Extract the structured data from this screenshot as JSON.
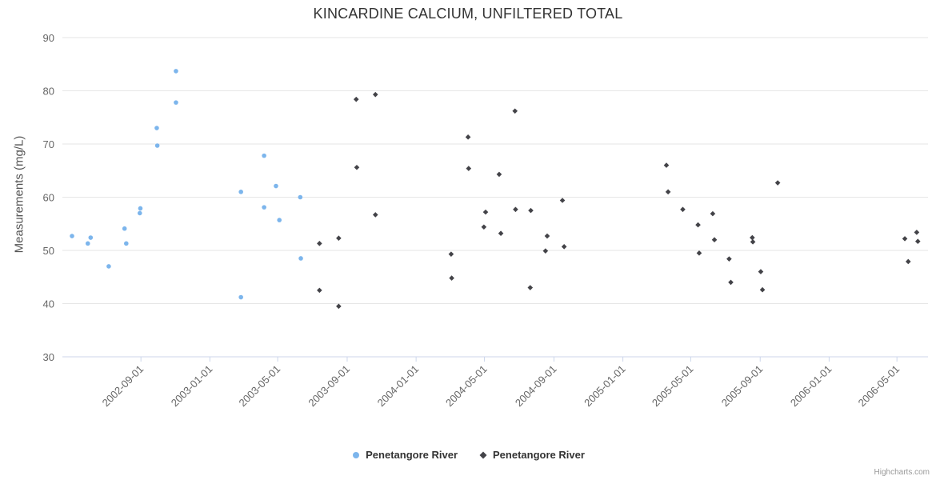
{
  "credits": "Highcharts.com",
  "chart_data": {
    "type": "scatter",
    "title": "KINCARDINE CALCIUM, UNFILTERED TOTAL",
    "xlabel": "",
    "ylabel": "Measurements (mg/L)",
    "ylim": [
      30,
      90
    ],
    "y_ticks": [
      30,
      40,
      50,
      60,
      70,
      80,
      90
    ],
    "x_ticks": [
      "2002-09-01",
      "2003-01-01",
      "2003-05-01",
      "2003-09-01",
      "2004-01-01",
      "2004-05-01",
      "2004-09-01",
      "2005-01-01",
      "2005-05-01",
      "2005-09-01",
      "2006-01-01",
      "2006-05-01"
    ],
    "x_range": [
      "2002-04-15",
      "2006-06-25"
    ],
    "grid": "horizontal-only",
    "legend_position": "bottom-center",
    "colors": {
      "series1": "#7cb5ec",
      "series2": "#434348",
      "gridline": "#e6e6e6",
      "axis_line": "#ccd6eb",
      "axis_label": "#666666",
      "title": "#333333"
    },
    "series": [
      {
        "name": "Penetangore River",
        "marker": "circle",
        "color": "#7cb5ec",
        "points": [
          [
            "2002-05-02",
            52.7
          ],
          [
            "2002-05-30",
            51.3
          ],
          [
            "2002-06-04",
            52.4
          ],
          [
            "2002-07-06",
            47.0
          ],
          [
            "2002-08-03",
            54.1
          ],
          [
            "2002-08-06",
            51.3
          ],
          [
            "2002-08-30",
            57.0
          ],
          [
            "2002-08-31",
            57.9
          ],
          [
            "2002-09-29",
            73.0
          ],
          [
            "2002-09-30",
            69.7
          ],
          [
            "2002-11-02",
            83.7
          ],
          [
            "2002-11-02",
            77.8
          ],
          [
            "2003-02-25",
            61.0
          ],
          [
            "2003-02-25",
            41.2
          ],
          [
            "2003-04-07",
            67.8
          ],
          [
            "2003-04-07",
            58.1
          ],
          [
            "2003-04-28",
            62.1
          ],
          [
            "2003-05-04",
            55.7
          ],
          [
            "2003-06-10",
            60.0
          ],
          [
            "2003-06-11",
            48.5
          ]
        ]
      },
      {
        "name": "Penetangore River",
        "marker": "diamond",
        "color": "#434348",
        "points": [
          [
            "2003-07-14",
            51.3
          ],
          [
            "2003-07-14",
            42.5
          ],
          [
            "2003-08-17",
            52.3
          ],
          [
            "2003-08-17",
            39.5
          ],
          [
            "2003-09-17",
            78.4
          ],
          [
            "2003-09-18",
            65.6
          ],
          [
            "2003-10-21",
            79.3
          ],
          [
            "2003-10-21",
            56.7
          ],
          [
            "2004-03-03",
            49.3
          ],
          [
            "2004-03-04",
            44.8
          ],
          [
            "2004-04-02",
            71.3
          ],
          [
            "2004-04-03",
            65.4
          ],
          [
            "2004-04-30",
            54.4
          ],
          [
            "2004-05-03",
            57.2
          ],
          [
            "2004-05-27",
            64.3
          ],
          [
            "2004-05-30",
            53.2
          ],
          [
            "2004-06-24",
            76.2
          ],
          [
            "2004-06-25",
            57.7
          ],
          [
            "2004-07-21",
            43.0
          ],
          [
            "2004-07-22",
            57.5
          ],
          [
            "2004-08-17",
            49.9
          ],
          [
            "2004-08-20",
            52.7
          ],
          [
            "2004-09-16",
            59.4
          ],
          [
            "2004-09-19",
            50.7
          ],
          [
            "2005-03-19",
            66.0
          ],
          [
            "2005-03-22",
            61.0
          ],
          [
            "2005-04-17",
            57.7
          ],
          [
            "2005-05-14",
            54.8
          ],
          [
            "2005-05-16",
            49.5
          ],
          [
            "2005-06-09",
            56.9
          ],
          [
            "2005-06-12",
            52.0
          ],
          [
            "2005-07-08",
            48.4
          ],
          [
            "2005-07-11",
            44.0
          ],
          [
            "2005-08-18",
            52.4
          ],
          [
            "2005-08-19",
            51.6
          ],
          [
            "2005-09-02",
            46.0
          ],
          [
            "2005-09-05",
            42.6
          ],
          [
            "2005-10-02",
            62.7
          ],
          [
            "2006-05-15",
            52.2
          ],
          [
            "2006-05-21",
            47.9
          ],
          [
            "2006-06-05",
            53.4
          ],
          [
            "2006-06-07",
            51.7
          ]
        ]
      }
    ]
  }
}
